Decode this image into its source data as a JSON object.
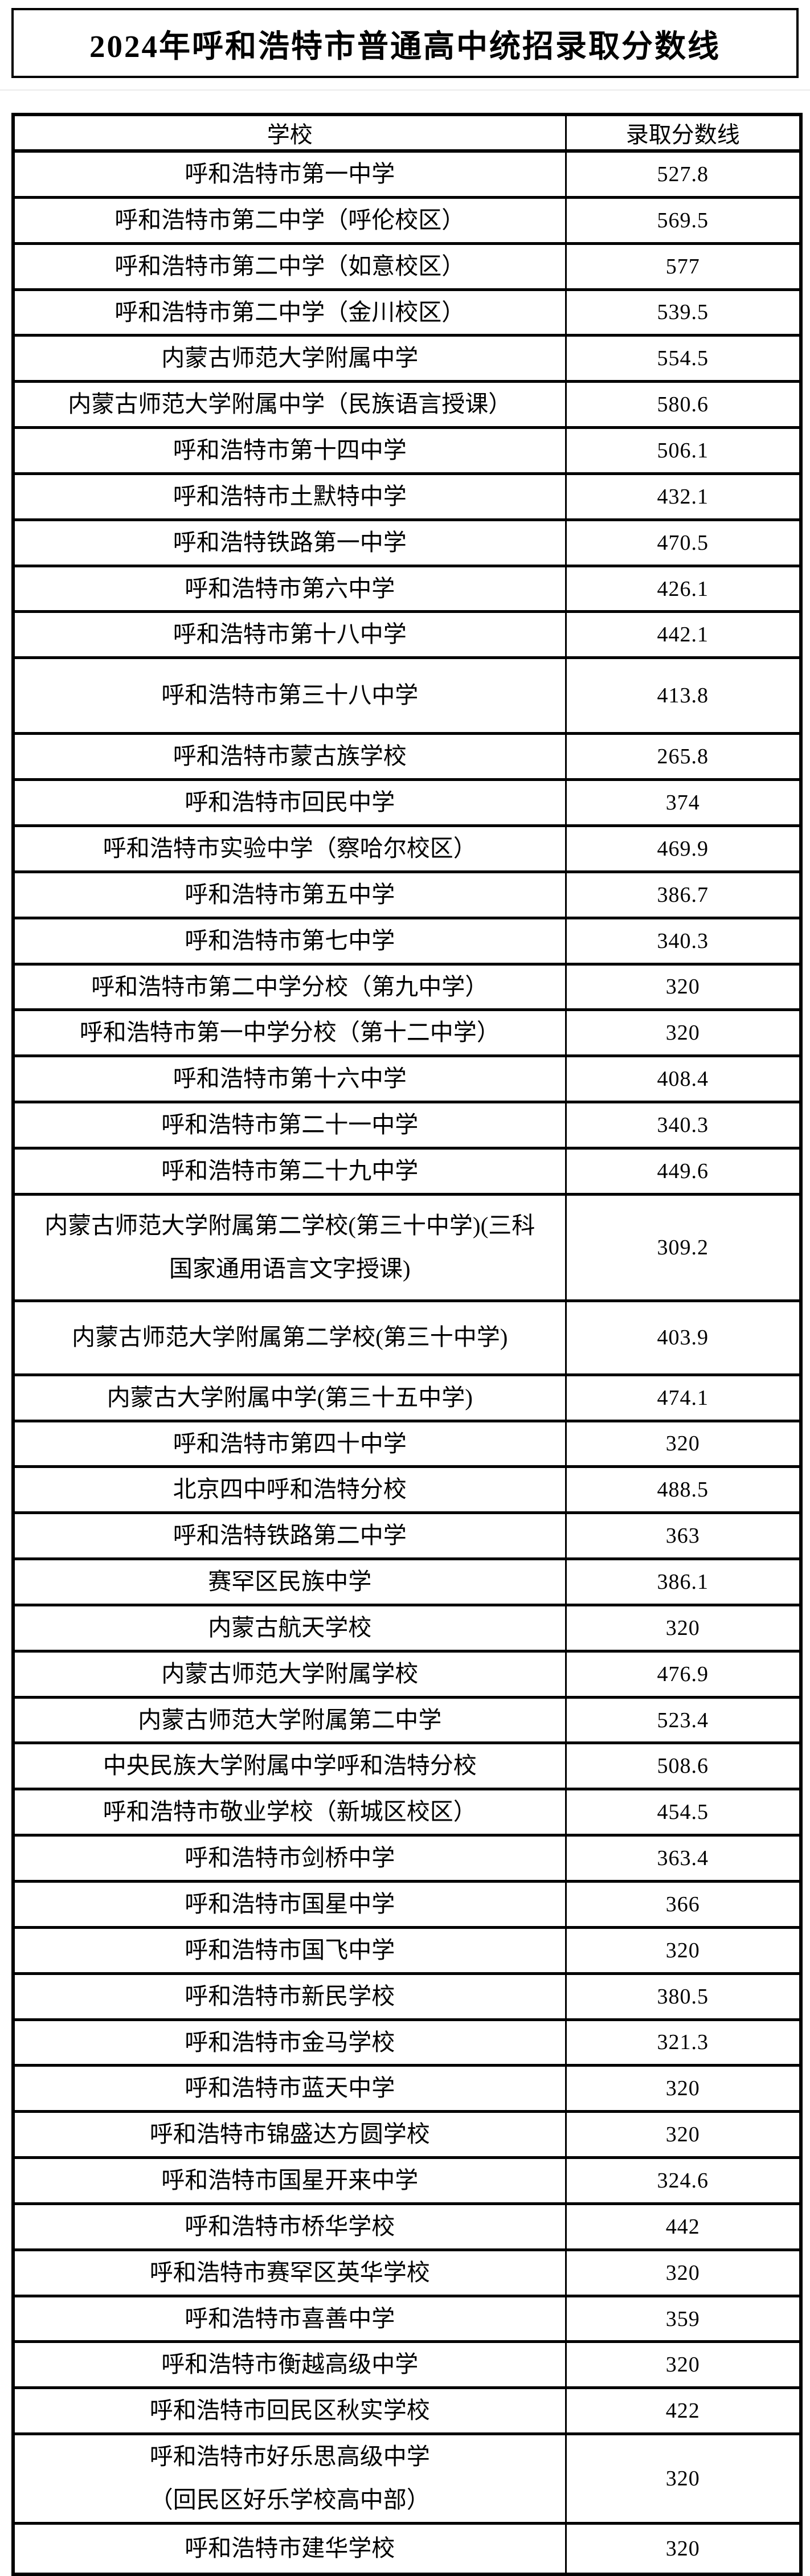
{
  "page": {
    "title": "2024年呼和浩特市普通高中统招录取分数线"
  },
  "colors": {
    "background": "#ffffff",
    "text": "#000000",
    "border": "#000000"
  },
  "table": {
    "col_headers": [
      "学校",
      "录取分数线"
    ],
    "rows": [
      {
        "school": "呼和浩特市第一中学",
        "score": "527.8"
      },
      {
        "school": "呼和浩特市第二中学（呼伦校区）",
        "score": "569.5"
      },
      {
        "school": "呼和浩特市第二中学（如意校区）",
        "score": "577"
      },
      {
        "school": "呼和浩特市第二中学（金川校区）",
        "score": "539.5"
      },
      {
        "school": "内蒙古师范大学附属中学",
        "score": "554.5"
      },
      {
        "school": "内蒙古师范大学附属中学（民族语言授课）",
        "score": "580.6"
      },
      {
        "school": "呼和浩特市第十四中学",
        "score": "506.1"
      },
      {
        "school": "呼和浩特市土默特中学",
        "score": "432.1"
      },
      {
        "school": "呼和浩特铁路第一中学",
        "score": "470.5"
      },
      {
        "school": "呼和浩特市第六中学",
        "score": "426.1"
      },
      {
        "school": "呼和浩特市第十八中学",
        "score": "442.1"
      },
      {
        "school": "呼和浩特市第三十八中学",
        "score": "413.8"
      },
      {
        "school": "呼和浩特市蒙古族学校",
        "score": "265.8"
      },
      {
        "school": "呼和浩特市回民中学",
        "score": "374"
      },
      {
        "school": "呼和浩特市实验中学（察哈尔校区）",
        "score": "469.9"
      },
      {
        "school": "呼和浩特市第五中学",
        "score": "386.7"
      },
      {
        "school": "呼和浩特市第七中学",
        "score": "340.3"
      },
      {
        "school": "呼和浩特市第二中学分校（第九中学）",
        "score": "320"
      },
      {
        "school": "呼和浩特市第一中学分校（第十二中学）",
        "score": "320"
      },
      {
        "school": "呼和浩特市第十六中学",
        "score": "408.4"
      },
      {
        "school": "呼和浩特市第二十一中学",
        "score": "340.3"
      },
      {
        "school": "呼和浩特市第二十九中学",
        "score": "449.6"
      },
      {
        "school": "内蒙古师范大学附属第二学校(第三十中学)(三科\n国家通用语言文字授课)",
        "score": "309.2"
      },
      {
        "school": "内蒙古师范大学附属第二学校(第三十中学)",
        "score": "403.9"
      },
      {
        "school": "内蒙古大学附属中学(第三十五中学)",
        "score": "474.1"
      },
      {
        "school": "呼和浩特市第四十中学",
        "score": "320"
      },
      {
        "school": "北京四中呼和浩特分校",
        "score": "488.5"
      },
      {
        "school": "呼和浩特铁路第二中学",
        "score": "363"
      },
      {
        "school": "赛罕区民族中学",
        "score": "386.1"
      },
      {
        "school": "内蒙古航天学校",
        "score": "320"
      },
      {
        "school": "内蒙古师范大学附属学校",
        "score": "476.9"
      },
      {
        "school": "内蒙古师范大学附属第二中学",
        "score": "523.4"
      },
      {
        "school": "中央民族大学附属中学呼和浩特分校",
        "score": "508.6"
      },
      {
        "school": "呼和浩特市敬业学校（新城区校区）",
        "score": "454.5"
      },
      {
        "school": "呼和浩特市剑桥中学",
        "score": "363.4"
      },
      {
        "school": "呼和浩特市国星中学",
        "score": "366"
      },
      {
        "school": "呼和浩特市国飞中学",
        "score": "320"
      },
      {
        "school": "呼和浩特市新民学校",
        "score": "380.5"
      },
      {
        "school": "呼和浩特市金马学校",
        "score": "321.3"
      },
      {
        "school": "呼和浩特市蓝天中学",
        "score": "320"
      },
      {
        "school": "呼和浩特市锦盛达方圆学校",
        "score": "320"
      },
      {
        "school": "呼和浩特市国星开来中学",
        "score": "324.6"
      },
      {
        "school": "呼和浩特市桥华学校",
        "score": "442"
      },
      {
        "school": "呼和浩特市赛罕区英华学校",
        "score": "320"
      },
      {
        "school": "呼和浩特市喜善中学",
        "score": "359"
      },
      {
        "school": "呼和浩特市衡越高级中学",
        "score": "320"
      },
      {
        "school": "呼和浩特市回民区秋实学校",
        "score": "422"
      },
      {
        "school": "呼和浩特市好乐思高级中学\n（回民区好乐学校高中部）",
        "score": "320"
      },
      {
        "school": "呼和浩特市建华学校",
        "score": "320"
      }
    ]
  }
}
